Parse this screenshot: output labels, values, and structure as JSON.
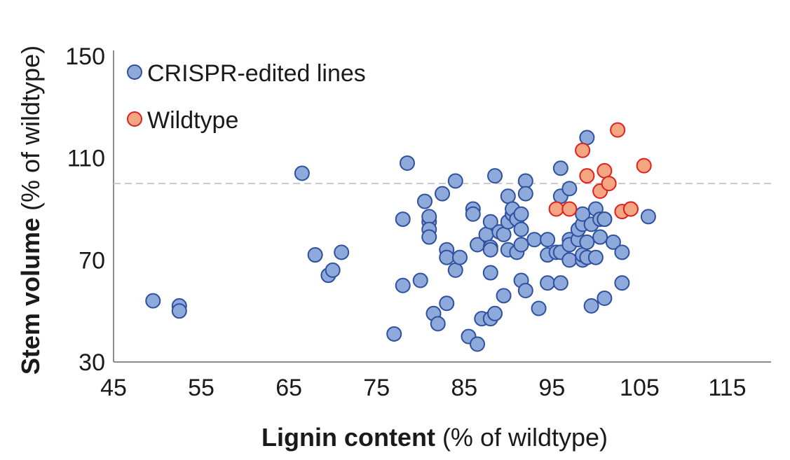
{
  "chart_data": {
    "type": "scatter",
    "xlabel_bold": "Lignin content",
    "xlabel_normal": " (% of wildtype)",
    "ylabel_bold": "Stem volume",
    "ylabel_normal": " (% of wildtype)",
    "xlim": [
      45,
      120
    ],
    "ylim": [
      30,
      150
    ],
    "xticks": [
      45,
      55,
      65,
      75,
      85,
      95,
      105,
      115
    ],
    "yticks": [
      30,
      70,
      110,
      150
    ],
    "reference_line_y": 100,
    "grid": false,
    "legend_position": "top-left",
    "series": [
      {
        "name": "CRISPR-edited lines",
        "fill": "#8eaadb",
        "stroke": "#2f4f9f",
        "points": [
          [
            49.5,
            54
          ],
          [
            52.5,
            52
          ],
          [
            52.5,
            50
          ],
          [
            66.5,
            104
          ],
          [
            68,
            72
          ],
          [
            69.5,
            64
          ],
          [
            70,
            66
          ],
          [
            71,
            73
          ],
          [
            77,
            41
          ],
          [
            78,
            60
          ],
          [
            78,
            86
          ],
          [
            78.5,
            108
          ],
          [
            80,
            62
          ],
          [
            80.5,
            93
          ],
          [
            81,
            85
          ],
          [
            81,
            87
          ],
          [
            81,
            82
          ],
          [
            81,
            79
          ],
          [
            81.5,
            49
          ],
          [
            82,
            45
          ],
          [
            82.5,
            96
          ],
          [
            83,
            53
          ],
          [
            83,
            74
          ],
          [
            83,
            71
          ],
          [
            84,
            66
          ],
          [
            84,
            101
          ],
          [
            84.5,
            71
          ],
          [
            85.5,
            40
          ],
          [
            86,
            90
          ],
          [
            86,
            88
          ],
          [
            86.5,
            37
          ],
          [
            86.5,
            76
          ],
          [
            87,
            47
          ],
          [
            87.5,
            80
          ],
          [
            88,
            75
          ],
          [
            88,
            74
          ],
          [
            88,
            85
          ],
          [
            88,
            47
          ],
          [
            88,
            65
          ],
          [
            88.5,
            103
          ],
          [
            88.5,
            49
          ],
          [
            89,
            81
          ],
          [
            89.5,
            56
          ],
          [
            89.5,
            80
          ],
          [
            90,
            95
          ],
          [
            90,
            85
          ],
          [
            90,
            74
          ],
          [
            90.5,
            88
          ],
          [
            90.5,
            90
          ],
          [
            91,
            86
          ],
          [
            91,
            73
          ],
          [
            91.5,
            88
          ],
          [
            91.5,
            82
          ],
          [
            91.5,
            62
          ],
          [
            91.5,
            76
          ],
          [
            92,
            101
          ],
          [
            92,
            96
          ],
          [
            92,
            58
          ],
          [
            93,
            78
          ],
          [
            93.5,
            51
          ],
          [
            94.5,
            78
          ],
          [
            94.5,
            72
          ],
          [
            94.5,
            61
          ],
          [
            95.5,
            73
          ],
          [
            96,
            61
          ],
          [
            96,
            73
          ],
          [
            96,
            95
          ],
          [
            96,
            106
          ],
          [
            97,
            78
          ],
          [
            97,
            76
          ],
          [
            97,
            70
          ],
          [
            97,
            98
          ],
          [
            98,
            78
          ],
          [
            98,
            82
          ],
          [
            98.5,
            84
          ],
          [
            98.5,
            70
          ],
          [
            98.5,
            72
          ],
          [
            98.5,
            88
          ],
          [
            99,
            77
          ],
          [
            99,
            118
          ],
          [
            99,
            71
          ],
          [
            99.5,
            52
          ],
          [
            99.5,
            84
          ],
          [
            100,
            90
          ],
          [
            100,
            71
          ],
          [
            100.5,
            86
          ],
          [
            100.5,
            79
          ],
          [
            101,
            86
          ],
          [
            101,
            86
          ],
          [
            101,
            55
          ],
          [
            102,
            77
          ],
          [
            103,
            73
          ],
          [
            103,
            61
          ],
          [
            106,
            87
          ]
        ]
      },
      {
        "name": "Wildtype",
        "fill": "#f4a582",
        "stroke": "#e0201f",
        "points": [
          [
            95.5,
            90
          ],
          [
            97,
            90
          ],
          [
            98.5,
            113
          ],
          [
            99,
            103
          ],
          [
            100.5,
            97
          ],
          [
            101,
            105
          ],
          [
            101.5,
            100
          ],
          [
            102.5,
            121
          ],
          [
            103,
            89
          ],
          [
            104,
            90
          ],
          [
            104,
            90
          ],
          [
            105.5,
            107
          ]
        ]
      }
    ]
  }
}
